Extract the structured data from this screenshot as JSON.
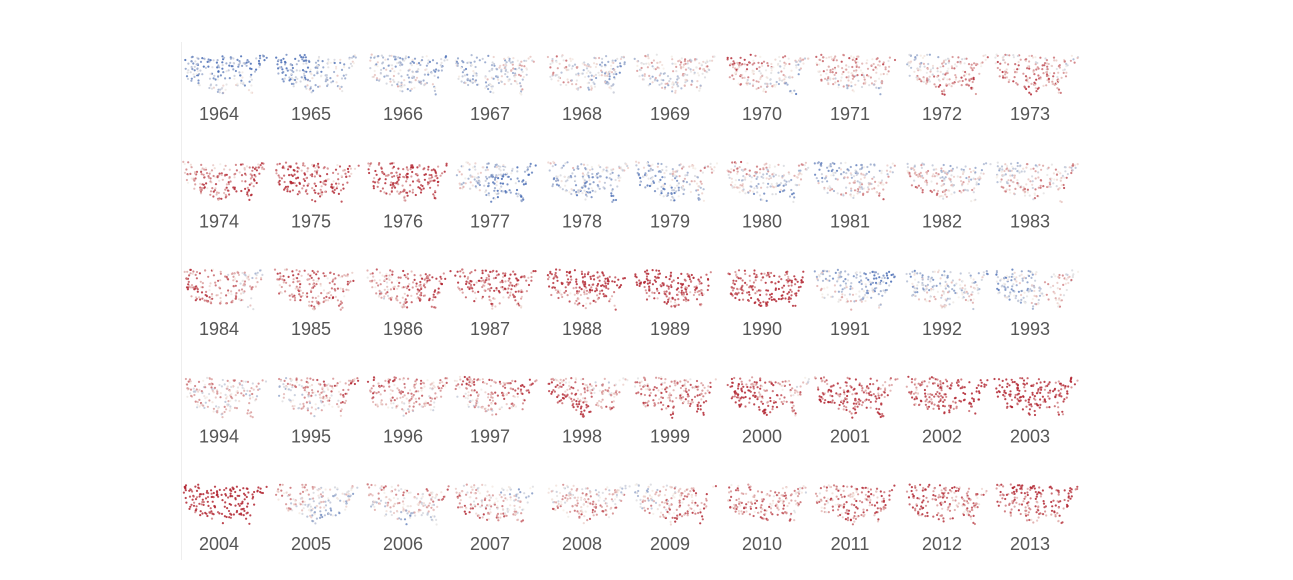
{
  "rows": [
    [
      "1964",
      "1965",
      "1966",
      "1967",
      "1968",
      "1969",
      "1970",
      "1971",
      "1972",
      "1973"
    ],
    [
      "1974",
      "1975",
      "1976",
      "1977",
      "1978",
      "1979",
      "1980",
      "1981",
      "1982",
      "1983"
    ],
    [
      "1984",
      "1985",
      "1986",
      "1987",
      "1988",
      "1989",
      "1990",
      "1991",
      "1992",
      "1993"
    ],
    [
      "1994",
      "1995",
      "1996",
      "1997",
      "1998",
      "1999",
      "2000",
      "2001",
      "2002",
      "2003"
    ],
    [
      "2004",
      "2005",
      "2006",
      "2007",
      "2008",
      "2009",
      "2010",
      "2011",
      "2012",
      "2013"
    ]
  ]
}
